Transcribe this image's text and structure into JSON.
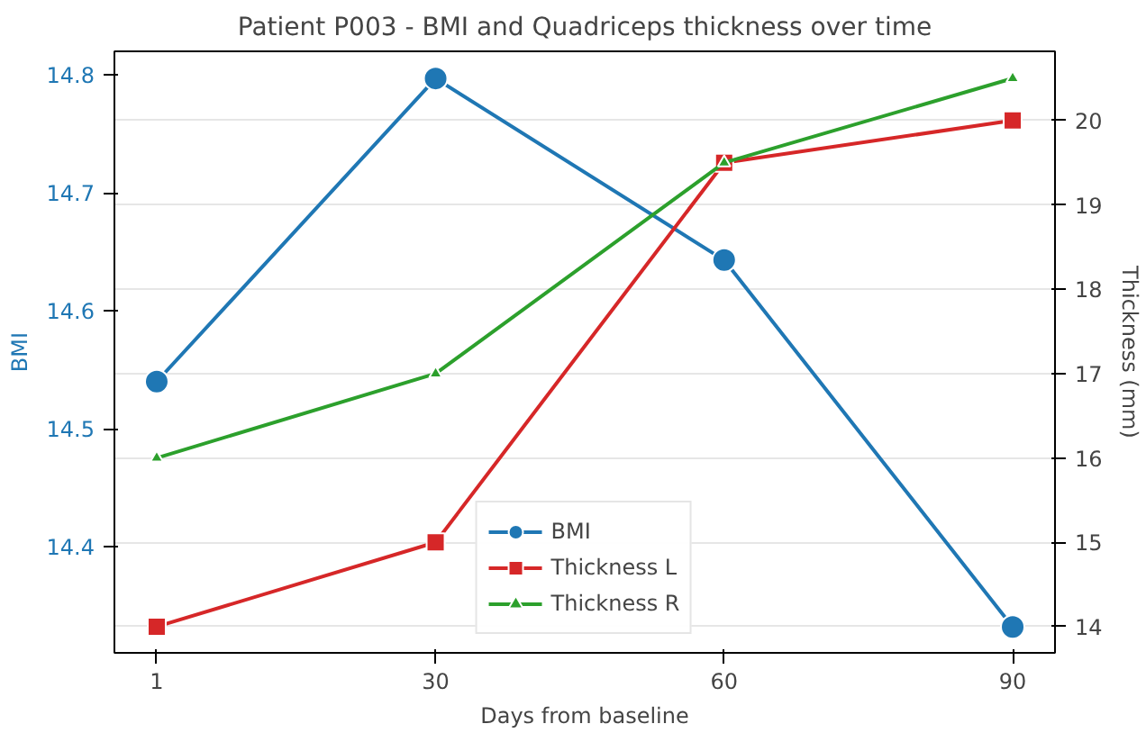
{
  "chart_data": {
    "type": "line",
    "title": "Patient P003 - BMI and Quadriceps thickness over time",
    "xlabel": "Days from baseline",
    "ylabel": "BMI",
    "y2label": "Thickness (mm)",
    "x": [
      1,
      30,
      60,
      90
    ],
    "xlim": [
      -3.4,
      94.4
    ],
    "xticks": [
      1,
      30,
      60,
      90
    ],
    "ylim": [
      14.31,
      14.82
    ],
    "yticks": [
      14.4,
      14.5,
      14.6,
      14.7,
      14.8
    ],
    "y2lim": [
      13.69,
      20.82
    ],
    "y2ticks": [
      14,
      15,
      16,
      17,
      18,
      19,
      20
    ],
    "grid": "y",
    "legend": "bottom",
    "series": [
      {
        "name": "BMI",
        "color": "#1f77b4",
        "marker": "circle",
        "values": [
          14.54,
          14.797,
          14.643,
          14.332
        ]
      },
      {
        "name": "Thickness L",
        "color": "#d62728",
        "marker": "square",
        "axis": "y2",
        "values": [
          14.0,
          15.0,
          19.5,
          20.0
        ]
      },
      {
        "name": "Thickness R",
        "color": "#2ca02c",
        "marker": "triangle",
        "axis": "y2",
        "values": [
          16.0,
          17.0,
          19.5,
          20.5
        ]
      }
    ]
  }
}
